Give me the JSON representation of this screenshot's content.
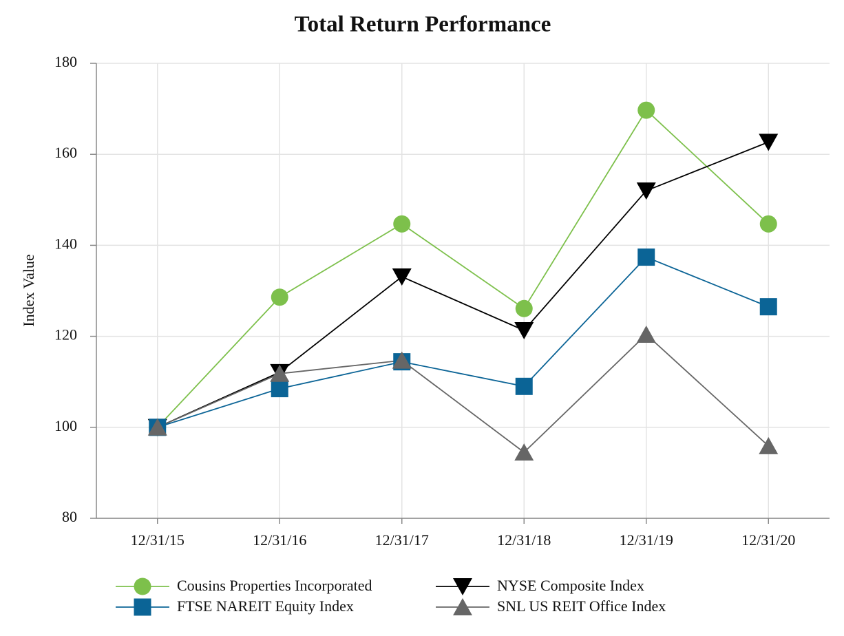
{
  "chart_data": {
    "type": "line",
    "title": "Total Return Performance",
    "y_label": "Index Value",
    "categories": [
      "12/31/15",
      "12/31/16",
      "12/31/17",
      "12/31/18",
      "12/31/19",
      "12/31/20"
    ],
    "series": [
      {
        "name": "Cousins Properties Incorporated",
        "color": "#7dc04b",
        "marker": "circle",
        "values": [
          100,
          128.6,
          144.7,
          126.1,
          169.7,
          144.7
        ]
      },
      {
        "name": "NYSE Composite Index",
        "color": "#000000",
        "marker": "triangle-down",
        "values": [
          100,
          112.1,
          133.1,
          121.3,
          152.0,
          162.7
        ]
      },
      {
        "name": "FTSE NAREIT Equity Index",
        "color": "#0b6496",
        "marker": "square",
        "values": [
          100,
          108.5,
          114.4,
          109.0,
          137.4,
          126.5
        ]
      },
      {
        "name": "SNL US REIT Office Index",
        "color": "#666666",
        "marker": "triangle-up",
        "values": [
          100,
          111.8,
          114.7,
          94.5,
          120.4,
          95.9
        ]
      }
    ],
    "ylim": [
      80,
      180
    ],
    "yticks": [
      80,
      100,
      120,
      140,
      160,
      180
    ],
    "grid": true,
    "legend": "bottom"
  }
}
